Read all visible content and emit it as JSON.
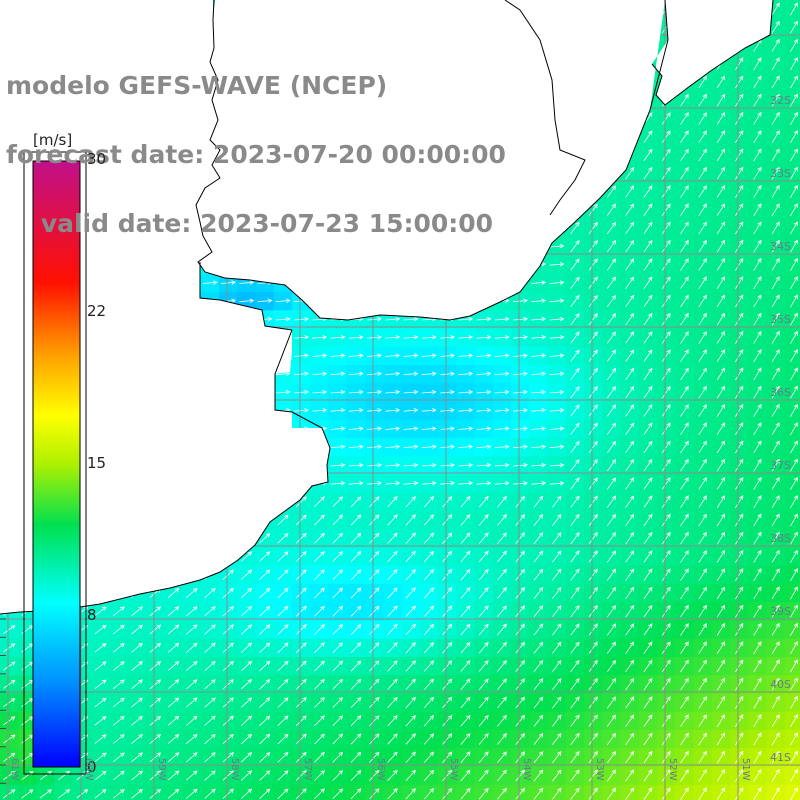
{
  "header": {
    "line1": "modelo GEFS-WAVE (NCEP)",
    "line2": "forecast date: 2023-07-20 00:00:00",
    "line3": "    valid date: 2023-07-23 15:00:00"
  },
  "colorbar": {
    "unit": "[m/s]",
    "ticks": [
      "30",
      "22",
      "15",
      "8",
      "0"
    ],
    "min": 0,
    "max": 30
  },
  "grid": {
    "lat_labels": [
      "32S",
      "33S",
      "34S",
      "35S",
      "36S",
      "37S",
      "38S",
      "39S",
      "40S",
      "41S"
    ],
    "lon_labels": [
      "61W",
      "60W",
      "59W",
      "58W",
      "57W",
      "56W",
      "55W",
      "54W",
      "53W",
      "52W",
      "51W"
    ]
  },
  "palette": {
    "land": "#ffffff",
    "coast": "#000000",
    "grid_line": "#8c8c8c",
    "arrow": "#ffffff",
    "text_gray": "#8a8a8a"
  }
}
